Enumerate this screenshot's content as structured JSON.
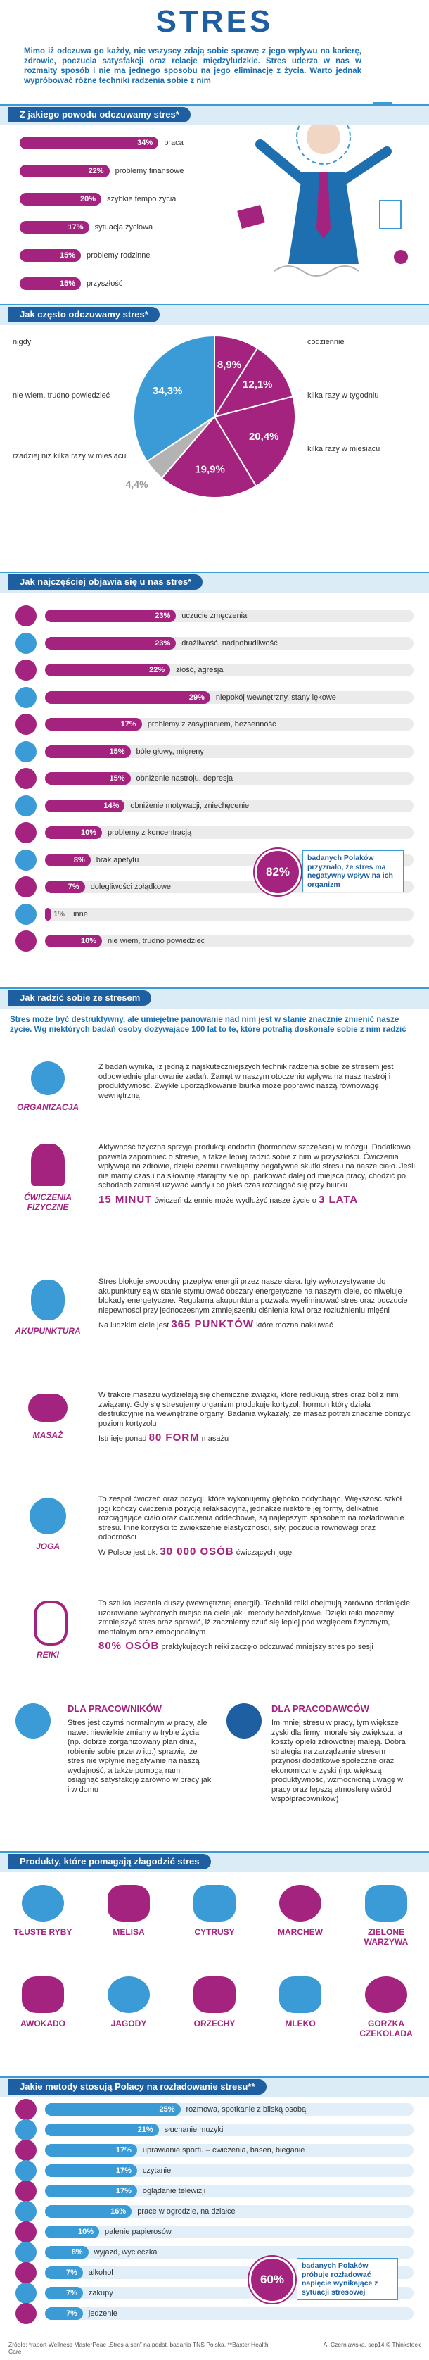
{
  "header": {
    "title": "STRES",
    "intro": "Mimo iż odczuwa go każdy, nie wszyscy zdają sobie sprawę z jego wpływu na karierę, zdrowie, poczucia satysfakcji oraz relacje międzyludzkie. Stres uderza w nas w rozmaity sposób i nie ma jednego sposobu na jego eliminację z życia. Warto jednak wypróbować różne techniki radzenia sobie z nim"
  },
  "reasons": {
    "title": "Z jakiego powodu odczuwamy stres*",
    "color": "#a4237f",
    "categories": [
      "praca",
      "problemy finansowe",
      "szybkie tempo życia",
      "sytuacja życiowa",
      "problemy rodzinne",
      "przyszłość"
    ],
    "values": [
      34,
      22,
      20,
      17,
      15,
      15
    ],
    "value_labels": [
      "34%",
      "22%",
      "20%",
      "17%",
      "15%",
      "15%"
    ]
  },
  "frequency": {
    "title": "Jak często odczuwamy stres*",
    "categories": [
      "codziennie",
      "kilka razy w tygodniu",
      "kilka razy w miesiącu",
      "rzadziej niż kilka razy w miesiącu",
      "nie wiem, trudno powiedzieć",
      "nigdy"
    ],
    "values": [
      8.9,
      12.1,
      20.4,
      19.9,
      4.4,
      34.3
    ],
    "value_labels": [
      "8,9%",
      "12,1%",
      "20,4%",
      "19,9%",
      "4,4%",
      "34,3%"
    ],
    "colors": [
      "#a4237f",
      "#a4237f",
      "#a4237f",
      "#a4237f",
      "#b3b3b3",
      "#3b9bd6"
    ]
  },
  "symptoms": {
    "title": "Jak najczęściej objawia się u nas stres*",
    "color": "#a4237f",
    "categories": [
      "uczucie zmęczenia",
      "drażliwość, nadpobudliwość",
      "złość, agresja",
      "niepokój wewnętrzny, stany lękowe",
      "problemy z zasypianiem, bezsenność",
      "bóle głowy, migreny",
      "obniżenie nastroju, depresja",
      "obniżenie motywacji, zniechęcenie",
      "problemy z koncentracją",
      "brak apetytu",
      "dolegliwości żołądkowe",
      "inne",
      "nie wiem, trudno powiedzieć"
    ],
    "values": [
      23,
      23,
      22,
      29,
      17,
      15,
      15,
      14,
      10,
      8,
      7,
      1,
      10
    ],
    "value_labels": [
      "23%",
      "23%",
      "22%",
      "29%",
      "17%",
      "15%",
      "15%",
      "14%",
      "10%",
      "8%",
      "7%",
      "1%",
      "10%"
    ],
    "callout": {
      "value": "82%",
      "text": "badanych Polaków przyznało, że stres ma negatywny wpływ na ich organizm"
    }
  },
  "coping": {
    "title": "Jak radzić sobie ze stresem",
    "intro": "Stres może być destruktywny, ale umiejętne panowanie nad nim jest w stanie znacznie zmienić nasze życie. Wg niektórych badań osoby dożywające 100 lat to te, które potrafią doskonale sobie z nim radzić",
    "items": [
      {
        "name": "ORGANIZACJA",
        "text": "Z badań wynika, iż jedną z najskuteczniejszych technik radzenia sobie ze stresem jest odpowiednie planowanie zadań. Zamęt w naszym otoczeniu wpływa na nasz nastrój i produktywność. Zwykłe uporządkowanie biurka może poprawić naszą równowagę wewnętrzną"
      },
      {
        "name": "ĆWICZENIA FIZYCZNE",
        "text": "Aktywność fizyczna sprzyja produkcji endorfin (hormonów szczęścia) w mózgu. Dodatkowo pozwala zapomnieć o stresie, a także lepiej radzić sobie z nim w przyszłości. Ćwiczenia wpływają na zdrowie, dzięki czemu niwelujemy negatywne skutki stresu na nasze ciało. Jeśli nie mamy czasu na siłownię starajmy się np. parkować dalej od miejsca pracy, chodzić po schodach zamiast używać windy i co jakiś czas rozciągać się przy biurku",
        "fact": [
          "15 MINUT",
          "ćwiczeń dziennie może wydłużyć nasze życie o",
          "3 LATA"
        ]
      },
      {
        "name": "AKUPUNKTURA",
        "text": "Stres blokuje swobodny przepływ energii przez nasze ciała. Igły wykorzystywane do akupunktury są w stanie stymulować obszary energetyczne na naszym ciele, co niweluje blokady energetyczne. Regularna akupunktura pozwala wyeliminować stres oraz poczucie niepewności przy jednoczesnym zmniejszeniu ciśnienia krwi oraz rozluźnieniu mięśni",
        "fact": [
          "Na ludzkim ciele jest",
          "365 PUNKTÓW",
          "które można nakłuwać"
        ]
      },
      {
        "name": "MASAŻ",
        "text": "W trakcie masażu wydzielają się chemiczne związki, które redukują stres oraz ból z nim związany. Gdy się stresujemy organizm produkuje kortyzol, hormon który działa destrukcyjnie na wewnętrzne organy. Badania wykazały, że masaż potrafi znacznie obniżyć poziom kortyzolu",
        "fact": [
          "Istnieje ponad",
          "80 FORM",
          "masażu"
        ]
      },
      {
        "name": "JOGA",
        "text": "To zespół ćwiczeń oraz pozycji, które wykonujemy głęboko oddychając. Większość szkół jogi kończy ćwiczenia pozycją relaksacyjną, jednakże niektóre jej formy, delikatnie rozciągające ciało oraz ćwiczenia oddechowe, są najlepszym sposobem na rozładowanie stresu. Inne korzyści to zwiększenie elastyczności, siły, poczucia równowagi oraz odporności",
        "fact": [
          "W Polsce jest ok.",
          "30 000 OSÓB",
          "ćwiczących jogę"
        ]
      },
      {
        "name": "REIKI",
        "text": "To sztuka leczenia duszy (wewnętrznej energii). Techniki reiki obejmują zarówno dotknięcie uzdrawiane wybranych miejsc na ciele jak i metody bezdotykowe. Dzięki reiki możemy zmniejszyć stres oraz sprawić, iż zaczniemy czuć się lepiej pod względem fizycznym, mentalnym oraz emocjonalnym",
        "fact": [
          "80% OSÓB",
          "praktykujących reiki zaczęło odczuwać mniejszy stres po sesji"
        ]
      }
    ],
    "audiences": [
      {
        "name": "DLA PRACOWNIKÓW",
        "text": "Stres jest czymś normalnym w pracy, ale nawet niewielkie zmiany w trybie życia (np. dobrze zorganizowany plan dnia, robienie sobie przerw itp.) sprawią, że stres nie wpłynie negatywnie na naszą wydajność, a także pomogą nam osiągnąć satysfakcję zarówno w pracy jak i w domu"
      },
      {
        "name": "DLA PRACODAWCÓW",
        "text": "Im mniej stresu w pracy, tym większe zyski dla firmy: morale się zwiększa, a koszty opieki zdrowotnej maleją. Dobra strategia na zarządzanie stresem przynosi dodatkowe społeczne oraz ekonomiczne zyski (np. większą produktywność, wzmocnioną uwagę w pracy oraz lepszą atmosferę wśród współpracowników)"
      }
    ]
  },
  "products": {
    "title": "Produkty, które pomagają złagodzić stres",
    "items": [
      "TŁUSTE RYBY",
      "MELISA",
      "CYTRUSY",
      "MARCHEW",
      "ZIELONE WARZYWA",
      "AWOKADO",
      "JAGODY",
      "ORZECHY",
      "MLEKO",
      "GORZKA CZEKOLADA"
    ]
  },
  "methods": {
    "title": "Jakie metody stosują Polacy na rozładowanie stresu**",
    "color": "#3b9bd6",
    "categories": [
      "rozmowa, spotkanie z bliską osobą",
      "słuchanie muzyki",
      "uprawianie sportu – ćwiczenia, basen, bieganie",
      "czytanie",
      "oglądanie telewizji",
      "prace w ogrodzie, na działce",
      "palenie papierosów",
      "wyjazd, wycieczka",
      "alkohol",
      "zakupy",
      "jedzenie"
    ],
    "values": [
      25,
      21,
      17,
      17,
      17,
      16,
      10,
      8,
      7,
      7,
      7
    ],
    "value_labels": [
      "25%",
      "21%",
      "17%",
      "17%",
      "17%",
      "16%",
      "10%",
      "8%",
      "7%",
      "7%",
      "7%"
    ],
    "callout": {
      "value": "60%",
      "text": "badanych Polaków próbuje rozładować napięcie wynikające z sytuacji stresowej"
    }
  },
  "footer": {
    "sources": "Źródło: *raport Wellness MasterPeac „Stres a sen” na podst. badania TNS Polska, **Baxter Health Care",
    "credit": "A. Czerniawska, sep14 © Thinkstock"
  }
}
